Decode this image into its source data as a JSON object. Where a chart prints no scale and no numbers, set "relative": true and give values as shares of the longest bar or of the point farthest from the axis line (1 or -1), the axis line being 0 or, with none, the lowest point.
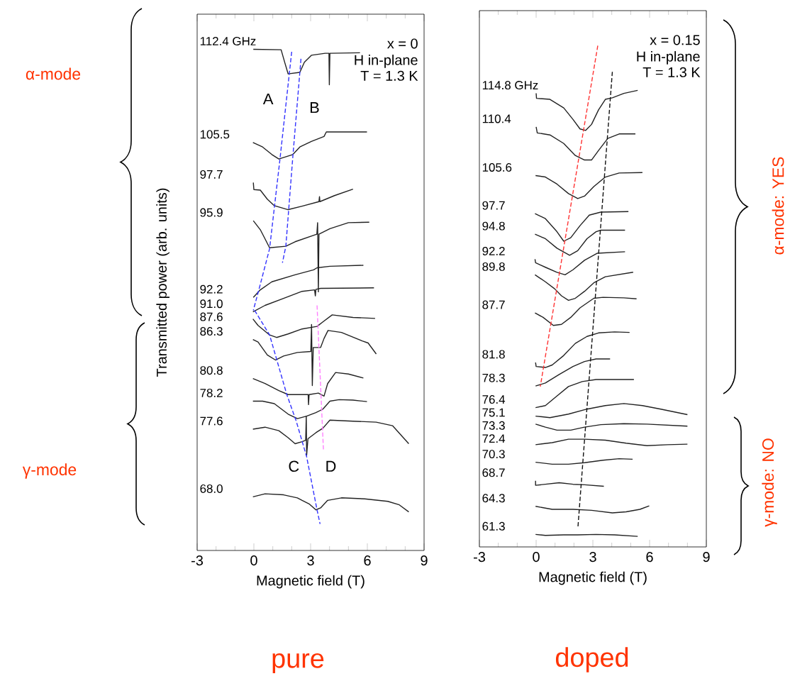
{
  "chart_data": [
    {
      "type": "line",
      "relative": true,
      "title": "pure",
      "xlabel": "Magnetic field (T)",
      "ylabel": "Transmitted power (arb. units)",
      "xlim": [
        -3,
        9
      ],
      "xticks": [
        -3,
        0,
        3,
        6,
        9
      ],
      "line_style": "solid",
      "annotations": [
        "x = 0",
        "H in-plane",
        "T = 1.3 K",
        "A",
        "B",
        "C",
        "D",
        "α-mode",
        "γ-mode"
      ],
      "series": [
        {
          "name": "112.4 GHz",
          "color": "#222222",
          "x": [
            -0.03,
            1.44,
            1.63,
            1.81,
            2.43,
            2.67,
            3.04,
            3.77,
            3.97,
            3.99,
            4.02,
            5.61
          ],
          "values": [
            1.0,
            0.999,
            0.974,
            0.951,
            0.954,
            0.974,
            0.988,
            0.992,
            0.992,
            0.929,
            0.992,
            0.993
          ]
        },
        {
          "name": "105.5",
          "color": "#222222",
          "x": [
            -0.05,
            0.46,
            0.95,
            1.32,
            2.06,
            2.43,
            3.04,
            3.71,
            3.83,
            5.98
          ],
          "values": [
            0.814,
            0.805,
            0.79,
            0.781,
            0.79,
            0.805,
            0.816,
            0.826,
            0.835,
            0.835
          ]
        },
        {
          "name": "97.7",
          "color": "#222222",
          "x": [
            -0.03,
            0.0,
            0.34,
            0.71,
            1.08,
            1.81,
            2.55,
            3.44,
            3.47,
            3.49,
            4.26,
            5.24
          ],
          "values": [
            0.734,
            0.72,
            0.719,
            0.701,
            0.688,
            0.68,
            0.687,
            0.696,
            0.706,
            0.696,
            0.708,
            0.721
          ]
        },
        {
          "name": "95.9",
          "color": "#222222",
          "x": [
            -0.03,
            0.34,
            0.83,
            1.69,
            2.18,
            3.33,
            3.37,
            3.41,
            3.44,
            4.02,
            5.0,
            6.1
          ],
          "values": [
            0.658,
            0.64,
            0.604,
            0.607,
            0.616,
            0.631,
            0.654,
            0.516,
            0.631,
            0.642,
            0.654,
            0.655
          ]
        },
        {
          "name": "92.2",
          "color": "#222222",
          "x": [
            -0.03,
            0.34,
            0.95,
            2.18,
            3.16,
            3.34,
            4.02,
            5.79
          ],
          "values": [
            0.505,
            0.52,
            0.536,
            0.55,
            0.56,
            0.564,
            0.567,
            0.569
          ]
        },
        {
          "name": "91.0",
          "color": "#222222",
          "x": [
            -0.05,
            0.59,
            1.57,
            2.55,
            3.21,
            3.25,
            3.28,
            3.53,
            6.35
          ],
          "values": [
            0.476,
            0.489,
            0.503,
            0.517,
            0.52,
            0.508,
            0.521,
            0.523,
            0.524
          ]
        },
        {
          "name": "87.6",
          "color": "#222222",
          "x": [
            -0.05,
            0.22,
            0.83,
            1.2,
            1.81,
            2.55,
            3.34,
            3.65,
            4.14,
            5.24,
            6.41
          ],
          "values": [
            0.462,
            0.449,
            0.43,
            0.425,
            0.432,
            0.442,
            0.447,
            0.456,
            0.47,
            0.465,
            0.463
          ]
        },
        {
          "name": "86.3",
          "color": "#222222",
          "x": [
            -0.05,
            0.22,
            0.71,
            1.14,
            1.57,
            2.3,
            3.01,
            3.05,
            3.09,
            3.14,
            3.53,
            3.71,
            3.92,
            4.63,
            5.73,
            6.04,
            6.47
          ],
          "values": [
            0.421,
            0.416,
            0.39,
            0.38,
            0.388,
            0.395,
            0.397,
            0.451,
            0.329,
            0.405,
            0.405,
            0.423,
            0.439,
            0.435,
            0.418,
            0.414,
            0.392
          ]
        },
        {
          "name": "80.8",
          "color": "#222222",
          "x": [
            -0.05,
            0.59,
            1.32,
            1.81,
            2.87,
            2.89,
            2.92,
            3.41,
            3.71,
            3.9,
            4.32,
            5.0,
            5.79
          ],
          "values": [
            0.343,
            0.333,
            0.319,
            0.311,
            0.311,
            0.291,
            0.311,
            0.314,
            0.308,
            0.333,
            0.355,
            0.352,
            0.344
          ]
        },
        {
          "name": "78.2",
          "color": "#222222",
          "x": [
            -0.05,
            0.46,
            1.08,
            1.81,
            2.3,
            2.79,
            3.28,
            3.65,
            4.02,
            4.51,
            5.24,
            5.98
          ],
          "values": [
            0.298,
            0.298,
            0.293,
            0.272,
            0.263,
            0.268,
            0.275,
            0.282,
            0.298,
            0.301,
            0.3,
            0.297
          ]
        },
        {
          "name": "77.6",
          "color": "#222222",
          "x": [
            -0.05,
            0.59,
            1.32,
            1.81,
            2.18,
            2.55,
            2.74,
            2.77,
            2.79,
            2.86,
            3.28,
            3.65,
            4.02,
            5.24,
            6.47,
            7.33,
            8.19
          ],
          "values": [
            0.242,
            0.246,
            0.239,
            0.225,
            0.213,
            0.217,
            0.22,
            0.268,
            0.19,
            0.223,
            0.235,
            0.244,
            0.26,
            0.258,
            0.256,
            0.249,
            0.213
          ]
        },
        {
          "name": "68.0",
          "color": "#222222",
          "x": [
            -0.05,
            0.59,
            1.57,
            2.3,
            2.55,
            2.92,
            3.28,
            3.53,
            3.9,
            4.63,
            5.86,
            7.08,
            7.69,
            8.19
          ],
          "values": [
            0.107,
            0.113,
            0.111,
            0.105,
            0.1,
            0.093,
            0.081,
            0.085,
            0.1,
            0.105,
            0.103,
            0.098,
            0.091,
            0.077
          ]
        },
        {
          "color": "#3333ff",
          "line_style": "dashed",
          "x": [
            2.0,
            1.38,
            0.83,
            0.34,
            -0.03
          ],
          "values": [
            0.995,
            0.781,
            0.602,
            0.531,
            0.479
          ]
        },
        {
          "color": "#3333ff",
          "line_style": "dashed",
          "x": [
            2.49,
            2.06,
            1.69,
            1.51
          ],
          "values": [
            0.981,
            0.786,
            0.607,
            0.574
          ]
        },
        {
          "color": "#3333ff",
          "line_style": "dashed",
          "x": [
            0.04,
            0.83,
            1.75,
            2.24,
            2.79,
            3.34,
            3.5
          ],
          "values": [
            0.479,
            0.43,
            0.31,
            0.258,
            0.187,
            0.081,
            0.053
          ]
        },
        {
          "color": "#ff80ff",
          "line_style": "dashed",
          "x": [
            3.34,
            3.68
          ],
          "values": [
            0.489,
            0.199
          ]
        }
      ]
    },
    {
      "type": "line",
      "relative": true,
      "title": "doped",
      "xlabel": "Magnetic field (T)",
      "xlim": [
        -3,
        9
      ],
      "xticks": [
        -3,
        0,
        3,
        6,
        9
      ],
      "line_style": "solid",
      "annotations": [
        "x = 0.15",
        "H in-plane",
        "T = 1.3 K",
        "α-mode: YES",
        "γ-mode: NO"
      ],
      "series": [
        {
          "name": "114.8 GHz",
          "color": "#222222",
          "x": [
            0.0,
            0.02,
            0.73,
            1.46,
            1.95,
            2.32,
            2.62,
            2.93,
            3.3,
            3.66,
            4.03,
            4.64,
            5.37
          ],
          "values": [
            0.905,
            0.895,
            0.893,
            0.876,
            0.853,
            0.834,
            0.831,
            0.843,
            0.872,
            0.893,
            0.896,
            0.905,
            0.911
          ]
        },
        {
          "name": "110.4",
          "color": "#222222",
          "x": [
            0.0,
            0.06,
            0.73,
            1.46,
            2.07,
            2.56,
            2.93,
            3.3,
            3.79,
            4.39,
            5.25
          ],
          "values": [
            0.838,
            0.826,
            0.822,
            0.805,
            0.781,
            0.772,
            0.772,
            0.791,
            0.815,
            0.824,
            0.824
          ]
        },
        {
          "name": "105.6",
          "color": "#222222",
          "x": [
            -0.03,
            0.49,
            1.1,
            1.71,
            2.2,
            2.56,
            3.05,
            3.66,
            4.39,
            5.62
          ],
          "values": [
            0.741,
            0.738,
            0.724,
            0.705,
            0.695,
            0.7,
            0.719,
            0.738,
            0.746,
            0.747
          ]
        },
        {
          "name": "97.7",
          "color": "#222222",
          "x": [
            -0.06,
            0.49,
            1.1,
            1.46,
            1.83,
            2.32,
            2.81,
            3.42,
            4.88
          ],
          "values": [
            0.665,
            0.655,
            0.629,
            0.61,
            0.617,
            0.641,
            0.662,
            0.668,
            0.669
          ]
        },
        {
          "name": "94.8",
          "color": "#222222",
          "x": [
            -0.06,
            0.49,
            1.1,
            1.77,
            2.2,
            2.69,
            3.17,
            3.42,
            4.7
          ],
          "values": [
            0.624,
            0.615,
            0.596,
            0.582,
            0.591,
            0.615,
            0.629,
            0.632,
            0.632
          ]
        },
        {
          "name": "92.2",
          "color": "#222222",
          "x": [
            -0.06,
            -0.03,
            0.49,
            1.1,
            1.53,
            1.95,
            2.56,
            3.24,
            4.7
          ],
          "values": [
            0.574,
            0.567,
            0.558,
            0.548,
            0.543,
            0.553,
            0.572,
            0.586,
            0.589
          ]
        },
        {
          "name": "89.8",
          "color": "#222222",
          "x": [
            -0.06,
            0.49,
            0.98,
            1.34,
            1.71,
            2.07,
            2.56,
            3.05,
            3.66,
            5.13
          ],
          "values": [
            0.543,
            0.529,
            0.515,
            0.501,
            0.492,
            0.496,
            0.51,
            0.527,
            0.539,
            0.548
          ]
        },
        {
          "name": "87.7",
          "color": "#222222",
          "x": [
            -0.06,
            0.37,
            0.91,
            1.34,
            1.83,
            2.32,
            3.05,
            3.54,
            4.64,
            5.31
          ],
          "values": [
            0.467,
            0.458,
            0.442,
            0.444,
            0.458,
            0.477,
            0.496,
            0.498,
            0.497,
            0.495
          ]
        },
        {
          "name": "81.8",
          "color": "#222222",
          "x": [
            -0.03,
            0.0,
            0.49,
            0.85,
            1.46,
            2.07,
            2.69,
            3.3,
            4.15,
            4.94
          ],
          "values": [
            0.368,
            0.36,
            0.358,
            0.363,
            0.382,
            0.406,
            0.42,
            0.427,
            0.429,
            0.428
          ]
        },
        {
          "name": "78.3",
          "color": "#222222",
          "x": [
            -0.03,
            0.49,
            1.22,
            1.95,
            2.56,
            3.17,
            3.91
          ],
          "values": [
            0.321,
            0.327,
            0.344,
            0.36,
            0.37,
            0.375,
            0.375
          ]
        },
        {
          "name": "76.4",
          "color": "#222222",
          "x": [
            -0.03,
            0.49,
            1.1,
            1.71,
            2.44,
            3.17,
            4.15,
            5.17
          ],
          "values": [
            0.278,
            0.282,
            0.301,
            0.32,
            0.33,
            0.334,
            0.334,
            0.334
          ]
        },
        {
          "name": "75.1",
          "color": "#222222",
          "x": [
            -0.03,
            0.73,
            1.71,
            2.69,
            3.66,
            4.64,
            5.62,
            6.59,
            8.0
          ],
          "values": [
            0.261,
            0.258,
            0.265,
            0.275,
            0.282,
            0.286,
            0.282,
            0.275,
            0.264
          ]
        },
        {
          "name": "73.3",
          "color": "#222222",
          "x": [
            -0.03,
            0.49,
            1.1,
            1.83,
            2.56,
            3.42,
            4.64,
            5.86,
            8.0
          ],
          "values": [
            0.245,
            0.239,
            0.233,
            0.233,
            0.239,
            0.244,
            0.246,
            0.245,
            0.241
          ]
        },
        {
          "name": "72.4",
          "color": "#222222",
          "x": [
            -0.03,
            0.85,
            1.71,
            2.56,
            3.66,
            4.76,
            5.86,
            6.96,
            8.0
          ],
          "values": [
            0.204,
            0.208,
            0.215,
            0.215,
            0.213,
            0.207,
            0.202,
            0.204,
            0.205
          ]
        },
        {
          "name": "70.3",
          "color": "#222222",
          "x": [
            -0.03,
            0.85,
            1.71,
            2.56,
            3.54,
            4.39,
            5.1
          ],
          "values": [
            0.169,
            0.165,
            0.165,
            0.168,
            0.173,
            0.176,
            0.175
          ]
        },
        {
          "name": "68.7",
          "color": "#222222",
          "x": [
            -0.03,
            -0.03,
            0.49,
            1.22,
            1.95,
            2.56,
            3.58
          ],
          "values": [
            0.132,
            0.123,
            0.125,
            0.128,
            0.125,
            0.124,
            0.121
          ]
        },
        {
          "name": "64.3",
          "color": "#222222",
          "x": [
            -0.03,
            0.85,
            1.95,
            2.93,
            4.03,
            4.76,
            5.49,
            5.98
          ],
          "values": [
            0.081,
            0.075,
            0.075,
            0.073,
            0.068,
            0.07,
            0.075,
            0.082
          ]
        },
        {
          "name": "61.3",
          "color": "#222222",
          "x": [
            -0.03,
            0.49,
            1.46,
            2.2,
            3.17,
            4.15,
            5.37
          ],
          "values": [
            0.025,
            0.023,
            0.024,
            0.024,
            0.025,
            0.024,
            0.021
          ]
        },
        {
          "color": "#ff3333",
          "line_style": "dashed",
          "x": [
            3.26,
            0.22
          ],
          "values": [
            1.0,
            0.32
          ]
        },
        {
          "color": "#111111",
          "line_style": "dashed",
          "x": [
            4.03,
            2.21
          ],
          "values": [
            0.948,
            0.039
          ]
        }
      ]
    }
  ]
}
